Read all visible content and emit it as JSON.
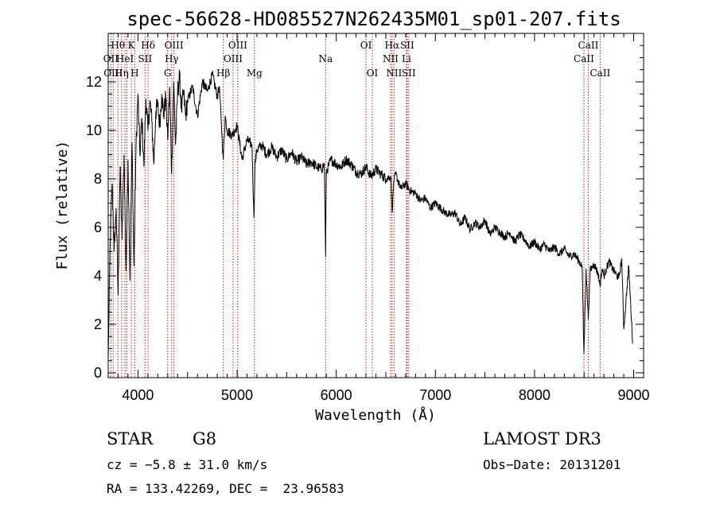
{
  "chart_data": {
    "type": "line",
    "title": "spec-56628-HD085527N262435M01_sp01-207.fits",
    "xlabel": "Wavelength (Å)",
    "ylabel": "Flux (relative)",
    "xlim": [
      3700,
      9100
    ],
    "ylim": [
      -0.2,
      14.0
    ],
    "x_ticks": [
      4000,
      5000,
      6000,
      7000,
      8000,
      9000
    ],
    "y_ticks": [
      0,
      2,
      4,
      6,
      8,
      10,
      12
    ],
    "series": [
      {
        "name": "flux",
        "x": [
          3700,
          3720,
          3740,
          3760,
          3780,
          3800,
          3820,
          3840,
          3860,
          3880,
          3900,
          3920,
          3940,
          3960,
          3980,
          4000,
          4020,
          4040,
          4060,
          4080,
          4100,
          4120,
          4140,
          4160,
          4180,
          4200,
          4220,
          4240,
          4260,
          4280,
          4300,
          4320,
          4340,
          4360,
          4380,
          4400,
          4420,
          4440,
          4460,
          4480,
          4500,
          4550,
          4600,
          4650,
          4700,
          4750,
          4800,
          4820,
          4840,
          4860,
          4880,
          4900,
          4950,
          5000,
          5050,
          5100,
          5150,
          5170,
          5180,
          5200,
          5250,
          5300,
          5350,
          5400,
          5450,
          5500,
          5550,
          5600,
          5650,
          5700,
          5750,
          5800,
          5850,
          5880,
          5893,
          5900,
          5950,
          6000,
          6050,
          6100,
          6150,
          6200,
          6250,
          6300,
          6350,
          6400,
          6450,
          6500,
          6550,
          6563,
          6580,
          6600,
          6650,
          6700,
          6750,
          6800,
          6850,
          6900,
          6950,
          7000,
          7050,
          7100,
          7150,
          7200,
          7250,
          7300,
          7350,
          7400,
          7450,
          7500,
          7550,
          7600,
          7650,
          7700,
          7750,
          7800,
          7850,
          7900,
          7950,
          8000,
          8050,
          8100,
          8150,
          8200,
          8250,
          8300,
          8350,
          8400,
          8450,
          8480,
          8498,
          8520,
          8542,
          8560,
          8600,
          8640,
          8662,
          8680,
          8700,
          8750,
          8800,
          8850,
          8880,
          8900,
          8950,
          8990
        ],
        "y": [
          0.5,
          5.5,
          7.8,
          5.0,
          6.8,
          3.2,
          8.5,
          5.5,
          9.0,
          4.2,
          8.8,
          3.8,
          9.5,
          4.4,
          9.2,
          11.5,
          9.0,
          10.5,
          8.5,
          11.3,
          10.0,
          11.2,
          10.4,
          8.6,
          10.8,
          11.0,
          10.2,
          11.5,
          10.6,
          11.4,
          9.6,
          11.8,
          8.2,
          12.0,
          9.4,
          11.6,
          12.2,
          10.8,
          11.6,
          10.6,
          11.2,
          11.8,
          10.6,
          12.0,
          11.6,
          12.3,
          11.4,
          11.8,
          10.4,
          8.8,
          10.6,
          10.0,
          9.8,
          10.2,
          8.8,
          9.6,
          9.4,
          6.4,
          8.6,
          9.2,
          9.4,
          9.0,
          9.3,
          8.9,
          9.2,
          8.8,
          9.1,
          8.7,
          8.9,
          8.6,
          8.7,
          8.5,
          8.4,
          8.6,
          4.8,
          8.3,
          8.8,
          8.6,
          8.5,
          8.8,
          8.6,
          8.3,
          8.2,
          8.5,
          8.1,
          8.4,
          8.2,
          8.0,
          8.1,
          6.6,
          7.9,
          8.2,
          7.6,
          7.8,
          7.5,
          7.4,
          7.1,
          7.2,
          6.8,
          7.0,
          6.8,
          6.6,
          6.5,
          6.6,
          6.1,
          6.4,
          5.9,
          6.2,
          6.0,
          6.3,
          5.7,
          6.0,
          5.8,
          5.6,
          5.8,
          5.4,
          5.7,
          5.5,
          5.2,
          5.4,
          5.1,
          5.3,
          5.0,
          5.2,
          4.9,
          5.1,
          4.8,
          4.9,
          4.6,
          4.4,
          0.8,
          4.3,
          2.2,
          4.2,
          4.5,
          4.1,
          3.6,
          4.3,
          4.0,
          4.6,
          4.2,
          3.9,
          4.7,
          1.8,
          4.4,
          1.2
        ]
      }
    ],
    "line_markers": [
      {
        "wavelength": 3727,
        "label": "OII",
        "row": 1
      },
      {
        "wavelength": 3750,
        "label": "OIII",
        "row": 2
      },
      {
        "wavelength": 3798,
        "label": "Hθ",
        "row": 0
      },
      {
        "wavelength": 3835,
        "label": "Hη",
        "row": 2
      },
      {
        "wavelength": 3869,
        "label": "HeI",
        "row": 1
      },
      {
        "wavelength": 3889,
        "label": "",
        "row": 0
      },
      {
        "wavelength": 3934,
        "label": "K",
        "row": 0
      },
      {
        "wavelength": 3968,
        "label": "H",
        "row": 2
      },
      {
        "wavelength": 4072,
        "label": "SII",
        "row": 1
      },
      {
        "wavelength": 4102,
        "label": "Hδ",
        "row": 0
      },
      {
        "wavelength": 4300,
        "label": "G",
        "row": 2
      },
      {
        "wavelength": 4340,
        "label": "Hγ",
        "row": 1
      },
      {
        "wavelength": 4363,
        "label": "OIII",
        "row": 0
      },
      {
        "wavelength": 4861,
        "label": "Hβ",
        "row": 2
      },
      {
        "wavelength": 4959,
        "label": "OIII",
        "row": 1
      },
      {
        "wavelength": 5007,
        "label": "OIII",
        "row": 0
      },
      {
        "wavelength": 5175,
        "label": "Mg",
        "row": 2
      },
      {
        "wavelength": 5893,
        "label": "Na",
        "row": 1
      },
      {
        "wavelength": 6300,
        "label": "OI",
        "row": 0
      },
      {
        "wavelength": 6364,
        "label": "OI",
        "row": 2
      },
      {
        "wavelength": 6548,
        "label": "NII",
        "row": 1
      },
      {
        "wavelength": 6563,
        "label": "Hα",
        "row": 0
      },
      {
        "wavelength": 6583,
        "label": "NII",
        "row": 2
      },
      {
        "wavelength": 6708,
        "label": "Li",
        "row": 1
      },
      {
        "wavelength": 6716,
        "label": "SII",
        "row": 0
      },
      {
        "wavelength": 6731,
        "label": "SII",
        "row": 2
      },
      {
        "wavelength": 8498,
        "label": "CaII",
        "row": 1
      },
      {
        "wavelength": 8542,
        "label": "CaII",
        "row": 0
      },
      {
        "wavelength": 8662,
        "label": "CaII",
        "row": 2
      }
    ]
  },
  "info": {
    "object_class": "STAR",
    "subclass": "G8",
    "survey": "LAMOST DR3",
    "cz": "cz = −5.8 ± 31.0 km/s",
    "obs_date": "Obs−Date: 20131201",
    "coords": "RA = 133.42269, DEC =  23.96583"
  },
  "colors": {
    "marker": "#b22222",
    "spectrum": "#000000",
    "axis": "#000000"
  }
}
